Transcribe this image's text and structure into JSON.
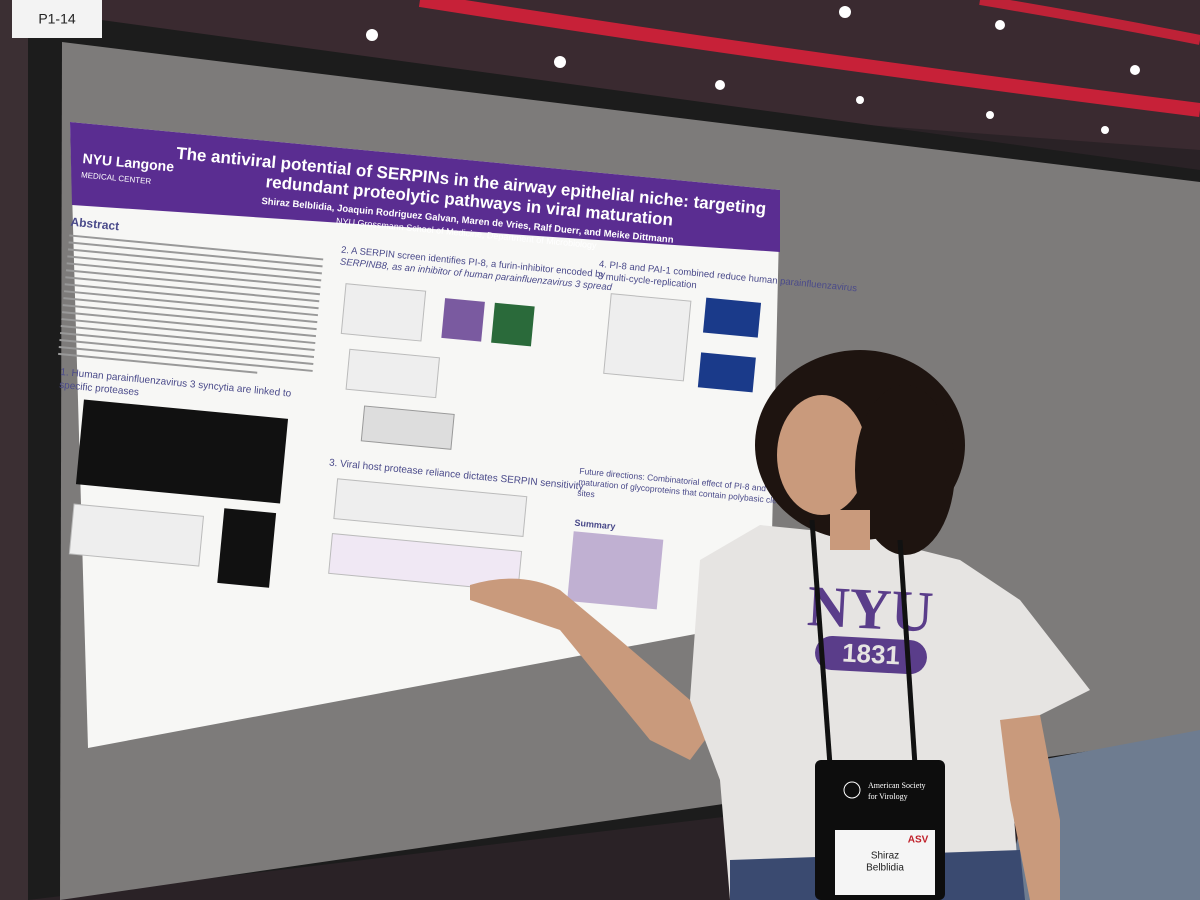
{
  "booth_label": "P1-14",
  "poster": {
    "logo": [
      "NYU Langone",
      "MEDICAL CENTER"
    ],
    "title": [
      "The antiviral potential of SERPINs in the airway epithelial niche: targeting",
      "redundant proteolytic pathways in viral maturation"
    ],
    "authors": "Shiraz Belblidia, Joaquin Rodriguez Galvan, Maren de Vries, Ralf Duerr, and Meike Dittmann",
    "affiliation": "NYU Grossmann School of Medicine, Department of Microbiology",
    "sections": {
      "abstract": "Abstract",
      "s1": [
        "1. Human parainfluenzavirus 3 syncytia are linked to",
        "specific proteases"
      ],
      "s2": [
        "2. A SERPIN screen identifies PI-8, a furin-inhibitor encoded by",
        "SERPINB8, as an inhibitor of human parainfluenzavirus 3 spread"
      ],
      "s3": "3. Viral host protease reliance dictates SERPIN sensitivity",
      "s4": [
        "4. PI-8 and PAI-1 combined reduce human parainfluenzavirus",
        "3 multi-cycle-replication"
      ],
      "future": [
        "Future directions: Combinatorial effect of PI-8 and PAI-1 on",
        "maturation of glycoproteins that contain polybasic cleavage",
        "sites"
      ],
      "summary": "Summary"
    }
  },
  "shirt": [
    "NYU",
    "1831"
  ],
  "badge": {
    "society": [
      "American Society",
      "for Virology"
    ],
    "logo": "ASV",
    "name": [
      "Shiraz",
      "Belblidia"
    ]
  }
}
